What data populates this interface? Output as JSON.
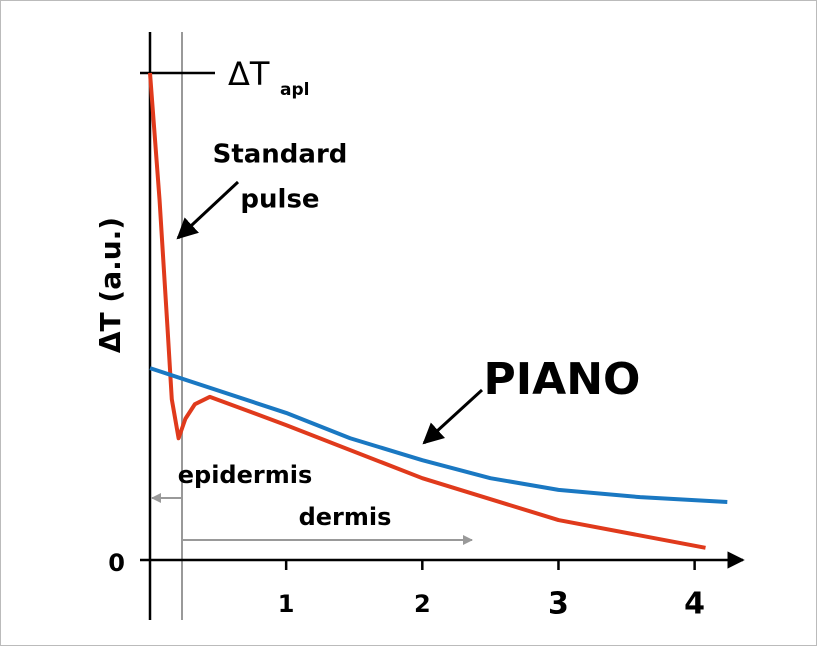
{
  "chart_data": {
    "type": "line",
    "ylabel": "ΔT (a.u.)",
    "xlim": [
      0,
      4.37
    ],
    "ylim": [
      0,
      1.08
    ],
    "xticks": [
      1,
      2,
      3,
      4
    ],
    "yticks": [
      0
    ],
    "series": [
      {
        "name": "Standard pulse",
        "color": "#e03a1c",
        "x": [
          0,
          0.07,
          0.13,
          0.16,
          0.21,
          0.26,
          0.33,
          0.44,
          1,
          2,
          3,
          4.08
        ],
        "values": [
          1,
          0.74,
          0.47,
          0.33,
          0.25,
          0.29,
          0.32,
          0.335,
          0.277,
          0.168,
          0.082,
          0.025
        ]
      },
      {
        "name": "PIANO",
        "color": "#1a78c2",
        "x": [
          0,
          1,
          1.47,
          2,
          2.5,
          3,
          3.6,
          4.24
        ],
        "values": [
          0.394,
          0.302,
          0.25,
          0.205,
          0.168,
          0.144,
          0.129,
          0.119
        ]
      }
    ],
    "annotations": {
      "delta_t": "ΔT",
      "apl": "apl",
      "standard": "Standard",
      "pulse": "pulse",
      "epidermis": "epidermis",
      "dermis": "dermis"
    }
  }
}
